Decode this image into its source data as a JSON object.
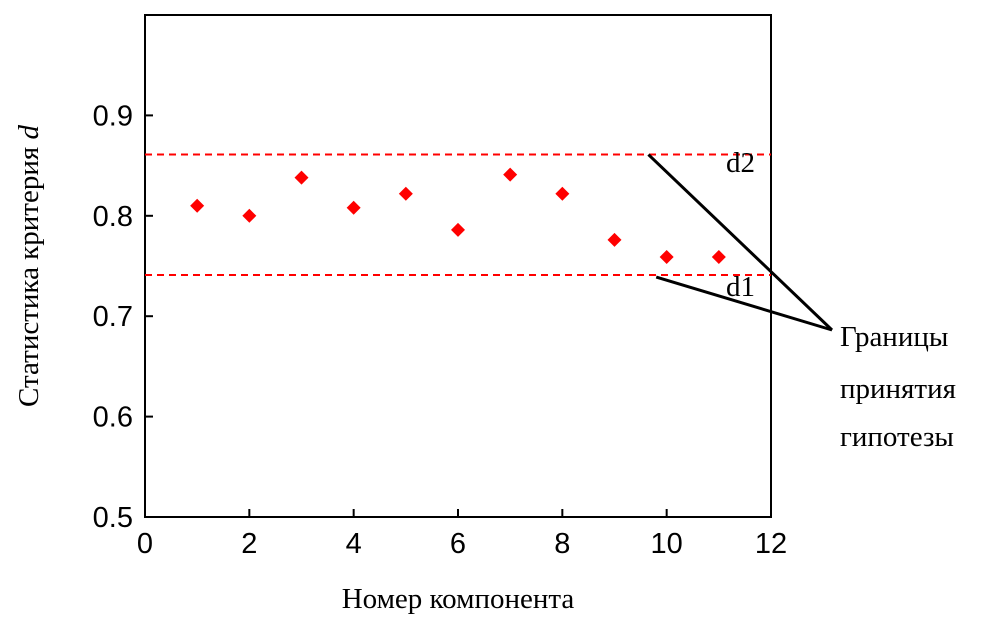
{
  "chart_data": {
    "type": "scatter",
    "x_axis": {
      "label": "Номер компонента",
      "range": [
        0,
        12
      ],
      "ticks": [
        "0",
        "2",
        "4",
        "6",
        "8",
        "10",
        "12"
      ]
    },
    "y_axis": {
      "label_main": "Статистика критерия ",
      "label_var": "d",
      "range": [
        0.5,
        1.0
      ],
      "ticks": [
        "0.5",
        "0.6",
        "0.7",
        "0.8",
        "0.9"
      ]
    },
    "series": [
      {
        "color": "#ff0000",
        "marker": "diamond",
        "points": [
          {
            "x": 1,
            "y": 0.81
          },
          {
            "x": 2,
            "y": 0.8
          },
          {
            "x": 3,
            "y": 0.838
          },
          {
            "x": 4,
            "y": 0.808
          },
          {
            "x": 5,
            "y": 0.822
          },
          {
            "x": 6,
            "y": 0.786
          },
          {
            "x": 7,
            "y": 0.841
          },
          {
            "x": 8,
            "y": 0.822
          },
          {
            "x": 9,
            "y": 0.776
          },
          {
            "x": 10,
            "y": 0.759
          },
          {
            "x": 11,
            "y": 0.759
          }
        ]
      }
    ],
    "reference_lines": [
      {
        "name": "d2",
        "y": 0.861,
        "color": "#ff0000",
        "style": "dashed"
      },
      {
        "name": "d1",
        "y": 0.741,
        "color": "#ff0000",
        "style": "dashed"
      }
    ],
    "annotation": {
      "lines": [
        "Границы",
        "принятия",
        "гипотезы"
      ]
    },
    "grid": false
  }
}
